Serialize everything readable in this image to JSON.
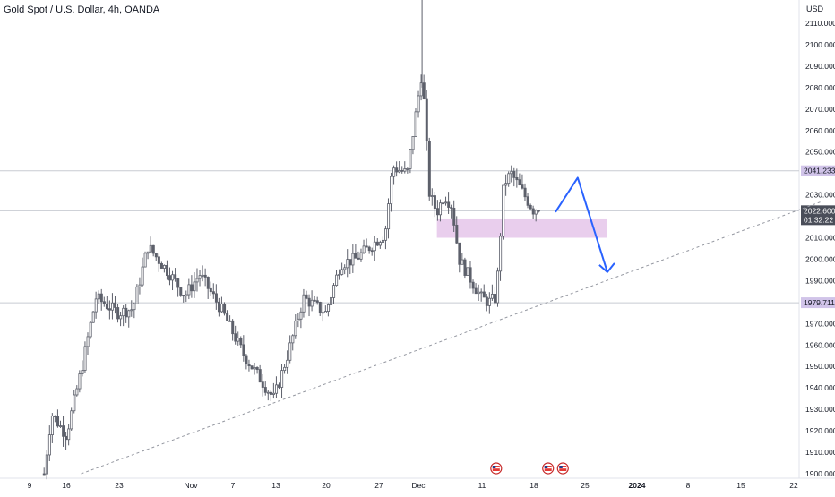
{
  "header": {
    "symbol_title": "Gold Spot / U.S. Dollar, 4h, OANDA"
  },
  "colors": {
    "candle": "#5d606b",
    "grid_line": "#c8cbd2",
    "trendline": "#9598a1",
    "zone_fill": "#e1bee7",
    "arrow": "#2962ff",
    "axis_text": "#131722",
    "price_badge_dark": "#4a4e59",
    "level_badge": "#d1c4e9"
  },
  "chart_data": {
    "type": "candlestick",
    "title": "Gold Spot / U.S. Dollar, 4h, OANDA",
    "y_unit_label": "USD",
    "ylim": [
      1898,
      2120
    ],
    "y_ticks": [
      "2110.000",
      "2100.000",
      "2090.000",
      "2080.000",
      "2070.000",
      "2060.000",
      "2050.000",
      "2030.000",
      "2010.000",
      "2000.000",
      "1990.000",
      "1970.000",
      "1960.000",
      "1950.000",
      "1940.000",
      "1930.000",
      "1920.000",
      "1910.000",
      "1900.000"
    ],
    "x_ticks": [
      {
        "label": "9",
        "bold": false
      },
      {
        "label": "16",
        "bold": false
      },
      {
        "label": "23",
        "bold": false
      },
      {
        "label": "Nov",
        "bold": false
      },
      {
        "label": "7",
        "bold": false
      },
      {
        "label": "13",
        "bold": false
      },
      {
        "label": "20",
        "bold": false
      },
      {
        "label": "27",
        "bold": false
      },
      {
        "label": "Dec",
        "bold": false
      },
      {
        "label": "11",
        "bold": false
      },
      {
        "label": "18",
        "bold": false
      },
      {
        "label": "25",
        "bold": false
      },
      {
        "label": "2024",
        "bold": true
      },
      {
        "label": "8",
        "bold": false
      },
      {
        "label": "15",
        "bold": false
      },
      {
        "label": "22",
        "bold": false
      }
    ],
    "path_keypoints": [
      {
        "date": "2023-10-13",
        "price": 1900
      },
      {
        "date": "2023-10-14",
        "price": 1928
      },
      {
        "date": "2023-10-16",
        "price": 1918
      },
      {
        "date": "2023-10-18",
        "price": 1948
      },
      {
        "date": "2023-10-20",
        "price": 1982
      },
      {
        "date": "2023-10-23",
        "price": 1975
      },
      {
        "date": "2023-10-25",
        "price": 1977
      },
      {
        "date": "2023-10-27",
        "price": 2006
      },
      {
        "date": "2023-10-30",
        "price": 1993
      },
      {
        "date": "2023-11-01",
        "price": 1983
      },
      {
        "date": "2023-11-03",
        "price": 1993
      },
      {
        "date": "2023-11-06",
        "price": 1976
      },
      {
        "date": "2023-11-09",
        "price": 1955
      },
      {
        "date": "2023-11-13",
        "price": 1935
      },
      {
        "date": "2023-11-15",
        "price": 1957
      },
      {
        "date": "2023-11-17",
        "price": 1982
      },
      {
        "date": "2023-11-20",
        "price": 1975
      },
      {
        "date": "2023-11-22",
        "price": 1998
      },
      {
        "date": "2023-11-24",
        "price": 2000
      },
      {
        "date": "2023-11-28",
        "price": 2012
      },
      {
        "date": "2023-11-29",
        "price": 2043
      },
      {
        "date": "2023-12-01",
        "price": 2040
      },
      {
        "date": "2023-12-03",
        "price": 2088
      },
      {
        "date": "2023-12-04",
        "price": 2030
      },
      {
        "date": "2023-12-05",
        "price": 2022
      },
      {
        "date": "2023-12-06",
        "price": 2030
      },
      {
        "date": "2023-12-07",
        "price": 2025
      },
      {
        "date": "2023-12-08",
        "price": 2000
      },
      {
        "date": "2023-12-11",
        "price": 1982
      },
      {
        "date": "2023-12-12",
        "price": 1980
      },
      {
        "date": "2023-12-13",
        "price": 1982
      },
      {
        "date": "2023-12-14",
        "price": 2035
      },
      {
        "date": "2023-12-15",
        "price": 2040
      },
      {
        "date": "2023-12-18",
        "price": 2023
      },
      {
        "date": "2023-12-19",
        "price": 2025
      }
    ],
    "horizontal_levels": [
      {
        "price": 2041.233,
        "label": "2041.233"
      },
      {
        "price": 1979.711,
        "label": "1979.711"
      }
    ],
    "current_price": {
      "price": 2022.6,
      "label": "2022.600",
      "countdown": "01:32:22"
    },
    "zone": {
      "start": "2023-12-05",
      "end": "2023-12-28",
      "low": 2010,
      "high": 2019
    },
    "trendline": {
      "start": {
        "date": "2023-10-18",
        "price": 1900
      },
      "end": {
        "date": "2024-01-26",
        "price": 2027
      }
    },
    "projection_arrow": [
      {
        "date": "2023-12-21",
        "price": 2022
      },
      {
        "date": "2023-12-24",
        "price": 2038
      },
      {
        "date": "2023-12-28",
        "price": 1994
      }
    ],
    "event_markers": [
      {
        "date": "2023-12-13",
        "icon": "us-flag-icon"
      },
      {
        "date": "2023-12-20",
        "icon": "us-flag-icon"
      },
      {
        "date": "2023-12-22",
        "icon": "us-flag-icon"
      }
    ]
  }
}
